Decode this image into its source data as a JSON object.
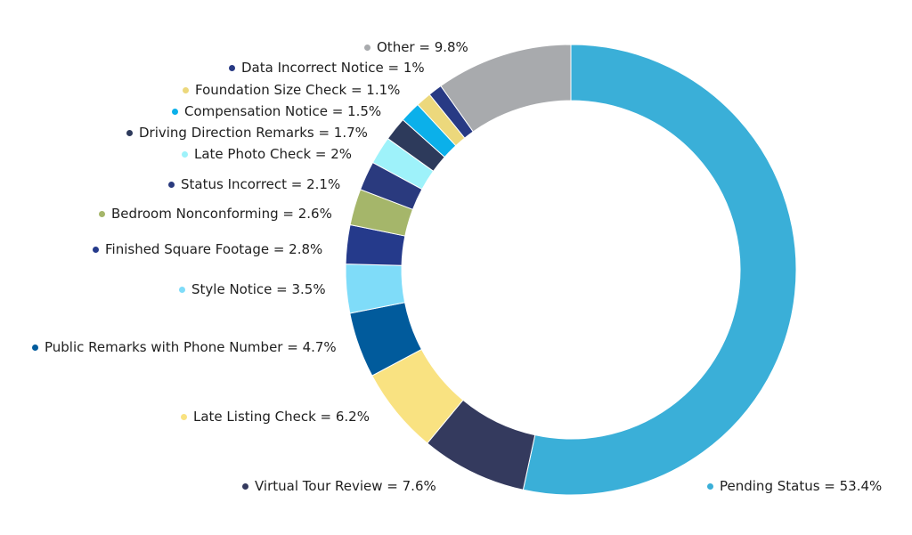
{
  "chart_data": {
    "type": "pie",
    "style": "donut",
    "title": "",
    "slices": [
      {
        "label": "Pending Status = 53.4%",
        "value": 53.4,
        "color": "#3aafd8"
      },
      {
        "label": "Virtual Tour Review = 7.6%",
        "value": 7.6,
        "color": "#343a5e"
      },
      {
        "label": "Late Listing Check = 6.2%",
        "value": 6.2,
        "color": "#f9e281"
      },
      {
        "label": "Public Remarks with Phone Number = 4.7%",
        "value": 4.7,
        "color": "#015b9c"
      },
      {
        "label": "Style Notice = 3.5%",
        "value": 3.5,
        "color": "#7fdcf9"
      },
      {
        "label": "Finished Square Footage = 2.8%",
        "value": 2.8,
        "color": "#253a8b"
      },
      {
        "label": "Bedroom Nonconforming = 2.6%",
        "value": 2.6,
        "color": "#a5b66a"
      },
      {
        "label": "Status Incorrect = 2.1%",
        "value": 2.1,
        "color": "#2a3a7e"
      },
      {
        "label": "Late Photo Check = 2%",
        "value": 2.0,
        "color": "#9ef2fa"
      },
      {
        "label": "Driving Direction Remarks = 1.7%",
        "value": 1.7,
        "color": "#2d3a5b"
      },
      {
        "label": "Compensation Notice = 1.5%",
        "value": 1.5,
        "color": "#0bb0ea"
      },
      {
        "label": "Foundation Size Check = 1.1%",
        "value": 1.1,
        "color": "#ecd87c"
      },
      {
        "label": "Data Incorrect Notice = 1%",
        "value": 1.0,
        "color": "#283a84"
      },
      {
        "label": "Other = 9.8%",
        "value": 9.8,
        "color": "#a8aaad"
      }
    ]
  }
}
